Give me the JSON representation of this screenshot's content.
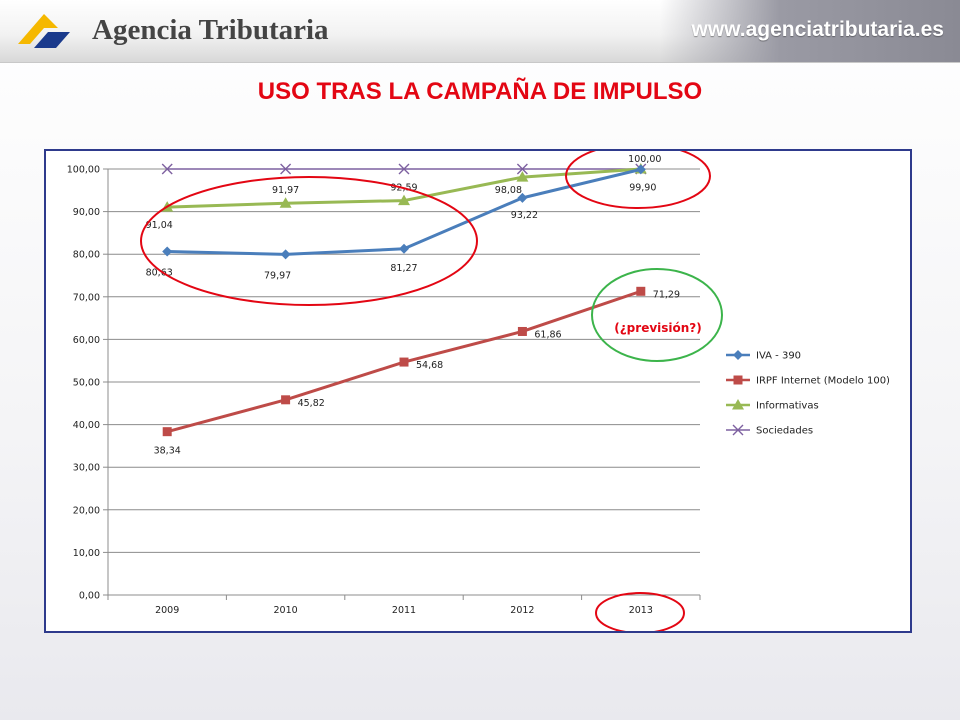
{
  "header": {
    "brand": "Agencia Tributaria",
    "url": "www.agenciatributaria.es",
    "logo_icon": "agencia-tributaria-logo-icon",
    "brand_colors": [
      "#f5b800",
      "#1a3a8c"
    ]
  },
  "slide": {
    "title": "USO TRAS LA CAMPAÑA DE IMPULSO",
    "title_color": "#e30613"
  },
  "annotations": {
    "forecast_label": "(¿previsión?)",
    "forecast_color": "#e30613",
    "circle_colors": {
      "red": "#e30613",
      "green": "#3cb44b"
    }
  },
  "chart_data": {
    "type": "line",
    "categories": [
      "2009",
      "2010",
      "2011",
      "2012",
      "2013"
    ],
    "ylim": [
      0,
      100
    ],
    "yticks": [
      "0,00",
      "10,00",
      "20,00",
      "30,00",
      "40,00",
      "50,00",
      "60,00",
      "70,00",
      "80,00",
      "90,00",
      "100,00"
    ],
    "grid": true,
    "legend": "right",
    "series": [
      {
        "name": "IVA - 390",
        "color": "#4a7ebb",
        "marker": "diamond",
        "values": [
          80.63,
          79.97,
          81.27,
          93.22,
          99.9
        ],
        "labels": [
          "80,63",
          "79,97",
          "81,27",
          "93,22",
          "99,90"
        ]
      },
      {
        "name": "IRPF Internet (Modelo 100)",
        "color": "#be4b48",
        "marker": "square",
        "values": [
          38.34,
          45.82,
          54.68,
          61.86,
          71.29
        ],
        "labels": [
          "38,34",
          "45,82",
          "54,68",
          "61,86",
          "71,29"
        ]
      },
      {
        "name": "Informativas",
        "color": "#98b954",
        "marker": "triangle",
        "values": [
          91.04,
          91.97,
          92.59,
          98.08,
          100.0
        ],
        "labels": [
          "91,04",
          "91,97",
          "92,59",
          "98,08",
          "100,00"
        ]
      },
      {
        "name": "Sociedades",
        "color": "#7d60a0",
        "marker": "x",
        "values": [
          100,
          100,
          100,
          100,
          100
        ],
        "labels": []
      }
    ]
  }
}
